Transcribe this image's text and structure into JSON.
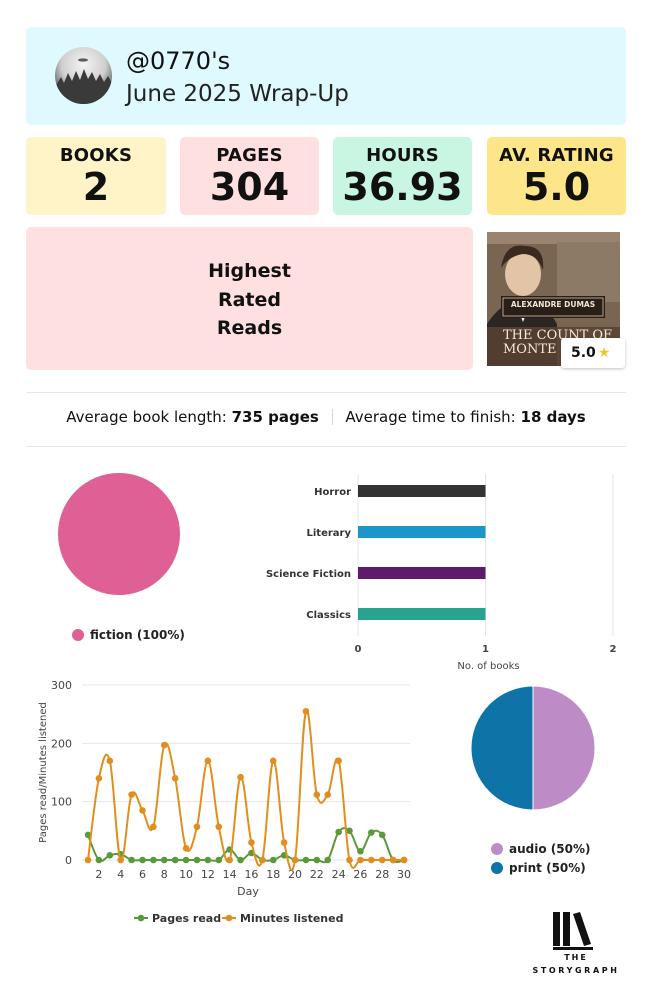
{
  "header": {
    "handle": "@0770's",
    "subtitle": "June 2025 Wrap-Up"
  },
  "stats": [
    {
      "label": "BOOKS",
      "value": "2"
    },
    {
      "label": "PAGES",
      "value": "304"
    },
    {
      "label": "HOURS",
      "value": "36.93"
    },
    {
      "label": "AV. RATING",
      "value": "5.0"
    }
  ],
  "highest_rated": {
    "lines": [
      "Highest",
      "Rated",
      "Reads"
    ],
    "book": {
      "author": "ALEXANDRE DUMAS",
      "title_fragment": "THE COUNT OF MONTE C",
      "rating": "5.0"
    }
  },
  "averages": {
    "length_label": "Average book length:",
    "length_value": "735 pages",
    "finish_label": "Average time to finish:",
    "finish_value": "18 days"
  },
  "colors": {
    "fiction": "#de6095",
    "horror": "#333333",
    "literary": "#1a96c8",
    "science_fiction": "#5e1a6b",
    "classics": "#27a390",
    "pages": "#5b9a3c",
    "minutes": "#e08f1f",
    "audio": "#bd8cc7",
    "print": "#0e74a8"
  },
  "chart_data": [
    {
      "type": "pie",
      "labels": [
        "fiction"
      ],
      "values": [
        100
      ],
      "legend": [
        "fiction (100%)"
      ]
    },
    {
      "type": "bar",
      "orientation": "horizontal",
      "categories": [
        "Horror",
        "Literary",
        "Science Fiction",
        "Classics"
      ],
      "values": [
        1,
        1,
        1,
        1
      ],
      "xlabel": "No. of books",
      "xlim": [
        0,
        2
      ],
      "xticks": [
        "0",
        "1",
        "2"
      ]
    },
    {
      "type": "line",
      "x": [
        1,
        2,
        3,
        4,
        5,
        6,
        7,
        8,
        9,
        10,
        11,
        12,
        13,
        14,
        15,
        16,
        17,
        18,
        19,
        20,
        21,
        22,
        23,
        24,
        25,
        26,
        27,
        28,
        29,
        30
      ],
      "series": [
        {
          "name": "Pages read",
          "values": [
            43,
            0,
            8,
            10,
            0,
            0,
            0,
            0,
            0,
            0,
            0,
            0,
            0,
            18,
            0,
            12,
            0,
            0,
            8,
            0,
            0,
            0,
            0,
            48,
            50,
            15,
            47,
            43,
            0,
            0
          ]
        },
        {
          "name": "Minutes listened",
          "values": [
            0,
            140,
            170,
            0,
            112,
            85,
            57,
            197,
            140,
            20,
            57,
            170,
            57,
            0,
            142,
            30,
            0,
            170,
            30,
            0,
            255,
            112,
            112,
            170,
            0,
            0,
            0,
            0,
            0,
            0
          ]
        }
      ],
      "xlabel": "Day",
      "ylabel": "Pages read/Minutes listened",
      "ylim": [
        0,
        300
      ],
      "yticks": [
        "0",
        "100",
        "200",
        "300"
      ],
      "xticks": [
        "2",
        "4",
        "6",
        "8",
        "10",
        "12",
        "14",
        "16",
        "18",
        "20",
        "22",
        "24",
        "26",
        "28",
        "30"
      ],
      "legend": [
        "Pages read",
        "Minutes listened"
      ]
    },
    {
      "type": "pie",
      "labels": [
        "audio",
        "print"
      ],
      "values": [
        50,
        50
      ],
      "legend": [
        "audio (50%)",
        "print (50%)"
      ]
    }
  ],
  "logo": {
    "line1": "THE",
    "line2": "STORYGRAPH"
  }
}
